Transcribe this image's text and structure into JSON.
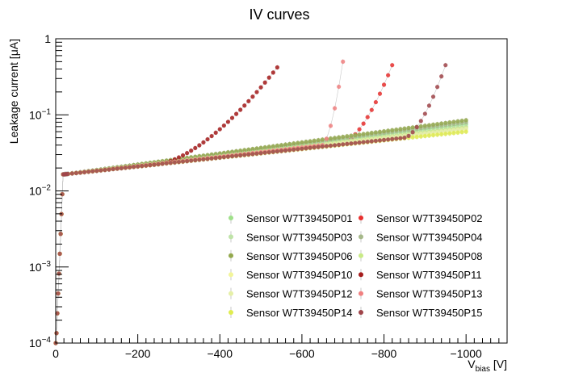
{
  "chart_data": {
    "type": "scatter",
    "title": "IV curves",
    "xlabel": {
      "main": "V",
      "sub": "bias",
      "unit": " [V]"
    },
    "ylabel": "Leakage current [μA]",
    "x_axis": {
      "range": [
        0,
        -1100
      ],
      "reversed": true,
      "tick_labels": [
        "0",
        "−200",
        "−400",
        "−600",
        "−800",
        "−1000"
      ],
      "tick_values": [
        0,
        -200,
        -400,
        -600,
        -800,
        -1000
      ]
    },
    "y_axis": {
      "scale": "log",
      "range": [
        0.0001,
        1
      ],
      "tick_labels": [
        {
          "base": "10",
          "exp": "−4",
          "value": 0.0001
        },
        {
          "base": "10",
          "exp": "−3",
          "value": 0.001
        },
        {
          "base": "10",
          "exp": "−2",
          "value": 0.01
        },
        {
          "base": "10",
          "exp": "−1",
          "value": 0.1
        },
        {
          "base": "1",
          "exp": "",
          "value": 1
        }
      ]
    },
    "grid": false,
    "legend_position": "bottom-right",
    "series": [
      {
        "name": "Sensor W7T39450P01",
        "color": "#9fe08a",
        "end_v": -1000,
        "i_end": 0.075
      },
      {
        "name": "Sensor W7T39450P02",
        "color": "#e8302f",
        "end_v": -820,
        "i_end": 0.45,
        "bd_start": -700,
        "bd_base": 0.043
      },
      {
        "name": "Sensor W7T39450P03",
        "color": "#bfe3a8",
        "end_v": -1000,
        "i_end": 0.07
      },
      {
        "name": "Sensor W7T39450P04",
        "color": "#a6b88a",
        "end_v": -1000,
        "i_end": 0.08
      },
      {
        "name": "Sensor W7T39450P06",
        "color": "#93a84d",
        "end_v": -1000,
        "i_end": 0.085
      },
      {
        "name": "Sensor W7T39450P08",
        "color": "#c8ea86",
        "end_v": -1000,
        "i_end": 0.068
      },
      {
        "name": "Sensor W7T39450P10",
        "color": "#f2f59a",
        "end_v": -1000,
        "i_end": 0.064
      },
      {
        "name": "Sensor W7T39450P11",
        "color": "#a51c1c",
        "end_v": -540,
        "i_end": 0.42,
        "bd_start": -240,
        "bd_base": 0.022
      },
      {
        "name": "Sensor W7T39450P12",
        "color": "#e6f0a8",
        "end_v": -1000,
        "i_end": 0.066
      },
      {
        "name": "Sensor W7T39450P13",
        "color": "#f08080",
        "end_v": -700,
        "i_end": 0.5,
        "bd_start": -650,
        "bd_base": 0.04
      },
      {
        "name": "Sensor W7T39450P14",
        "color": "#e0ec50",
        "end_v": -1000,
        "i_end": 0.06
      },
      {
        "name": "Sensor W7T39450P15",
        "color": "#a0454a",
        "end_v": -950,
        "i_end": 0.45,
        "bd_start": -850,
        "bd_base": 0.05
      }
    ]
  }
}
